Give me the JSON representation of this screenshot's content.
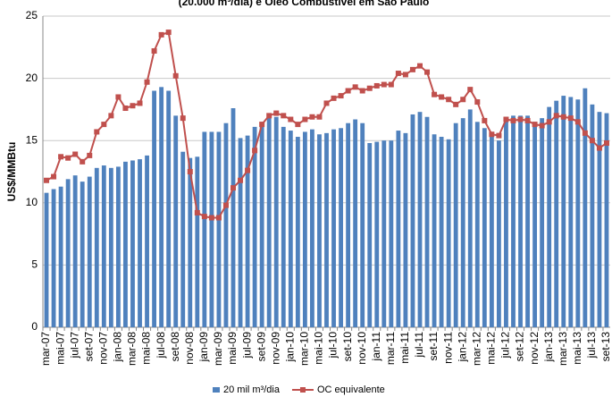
{
  "chart_data": {
    "type": "combo",
    "title": "(20.000 m³/dia) e Óleo Combustível em São Paulo",
    "y_label": "US$/MMBtu",
    "categories": [
      "mar-07",
      null,
      "mai-07",
      null,
      "jul-07",
      null,
      "set-07",
      null,
      "nov-07",
      null,
      "jan-08",
      null,
      "mar-08",
      null,
      "mai-08",
      null,
      "jul-08",
      null,
      "set-08",
      null,
      "nov-08",
      null,
      "jan-09",
      null,
      "mar-09",
      null,
      "mai-09",
      null,
      "jul-09",
      null,
      "set-09",
      null,
      "nov-09",
      null,
      "jan-10",
      null,
      "mar-10",
      null,
      "mai-10",
      null,
      "jul-10",
      null,
      "set-10",
      null,
      "nov-10",
      null,
      "jan-11",
      null,
      "mar-11",
      null,
      "mai-11",
      null,
      "jul-11",
      null,
      "set-11",
      null,
      "nov-11",
      null,
      "jan-12",
      null,
      "mar-12",
      null,
      "mai-12",
      null,
      "jul-12",
      null,
      "set-12",
      null,
      "nov-12",
      null,
      "jan-13",
      null,
      "mar-13",
      null,
      "mai-13",
      null,
      "jul-13",
      null,
      "set-13"
    ],
    "series": [
      {
        "name": "20 mil m³/dia",
        "type": "bar",
        "color": "#4f81bd",
        "values": [
          10.8,
          11.1,
          11.3,
          11.9,
          12.2,
          11.7,
          12.1,
          12.8,
          13.0,
          12.8,
          12.9,
          13.3,
          13.4,
          13.5,
          13.8,
          19.0,
          19.3,
          19.0,
          17.0,
          14.1,
          13.6,
          13.7,
          15.7,
          15.7,
          15.7,
          16.4,
          17.6,
          15.2,
          15.4,
          16.1,
          16.5,
          17.1,
          16.9,
          16.1,
          15.8,
          15.3,
          15.7,
          15.9,
          15.5,
          15.6,
          15.9,
          16.0,
          16.4,
          16.7,
          16.4,
          14.8,
          14.9,
          15.0,
          15.0,
          15.8,
          15.6,
          17.1,
          17.3,
          16.9,
          15.5,
          15.3,
          15.1,
          16.4,
          16.8,
          17.5,
          16.5,
          16.0,
          15.3,
          15.0,
          16.9,
          17.0,
          17.0,
          17.0,
          16.5,
          16.8,
          17.7,
          18.2,
          18.6,
          18.5,
          18.3,
          19.2,
          17.9,
          17.3,
          17.2
        ]
      },
      {
        "name": "OC equivalente",
        "type": "line",
        "color": "#c0504d",
        "values": [
          11.8,
          12.1,
          13.7,
          13.6,
          13.9,
          13.3,
          13.8,
          15.7,
          16.3,
          17.0,
          18.5,
          17.6,
          17.8,
          18.0,
          19.7,
          22.2,
          23.5,
          23.7,
          20.2,
          16.8,
          12.5,
          9.2,
          8.9,
          8.8,
          8.8,
          9.8,
          11.2,
          11.8,
          12.6,
          14.2,
          16.3,
          17.0,
          17.2,
          17.0,
          16.7,
          16.3,
          16.7,
          16.9,
          16.9,
          18.0,
          18.4,
          18.6,
          19.0,
          19.3,
          19.0,
          19.2,
          19.4,
          19.5,
          19.5,
          20.4,
          20.3,
          20.7,
          21.0,
          20.5,
          18.7,
          18.5,
          18.3,
          17.9,
          18.3,
          19.1,
          18.1,
          16.6,
          15.5,
          15.4,
          16.7,
          16.6,
          16.7,
          16.6,
          16.3,
          16.2,
          16.5,
          17.0,
          16.9,
          16.8,
          16.5,
          15.6,
          15.0,
          14.4,
          14.8
        ]
      }
    ],
    "ylim": [
      0,
      25
    ],
    "yticks": [
      0,
      5,
      10,
      15,
      20,
      25
    ],
    "grid": true,
    "legend": "bottom"
  }
}
